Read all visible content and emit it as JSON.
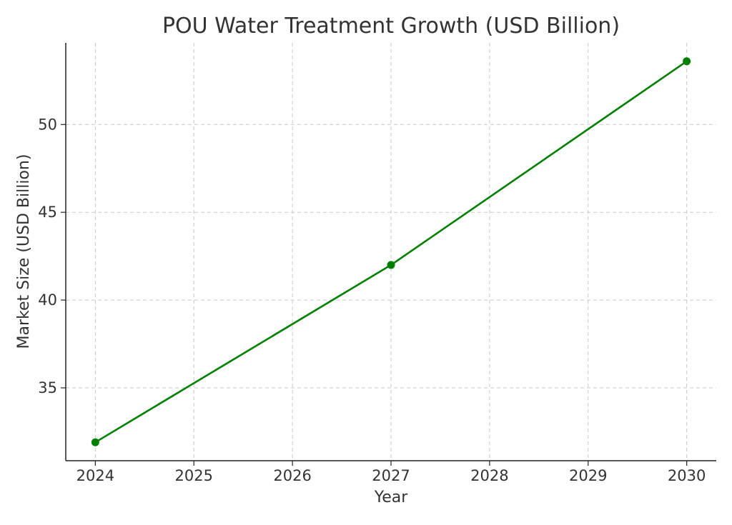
{
  "chart_data": {
    "type": "line",
    "title": "POU Water Treatment Growth (USD Billion)",
    "xlabel": "Year",
    "ylabel": "Market Size (USD Billion)",
    "x": [
      2024,
      2027,
      2030
    ],
    "series": [
      {
        "values": [
          31.9,
          42.0,
          53.6
        ],
        "color": "#008000",
        "marker": "circle"
      }
    ],
    "xticks": [
      2024,
      2025,
      2026,
      2027,
      2028,
      2029,
      2030
    ],
    "yticks": [
      35,
      40,
      45,
      50
    ],
    "xlim": [
      2023.7,
      2030.3
    ],
    "ylim": [
      30.85,
      54.65
    ],
    "grid": true,
    "colors": {
      "line": "#008000",
      "grid": "#c8c8c8",
      "axis": "#222222",
      "text": "#333333"
    }
  }
}
